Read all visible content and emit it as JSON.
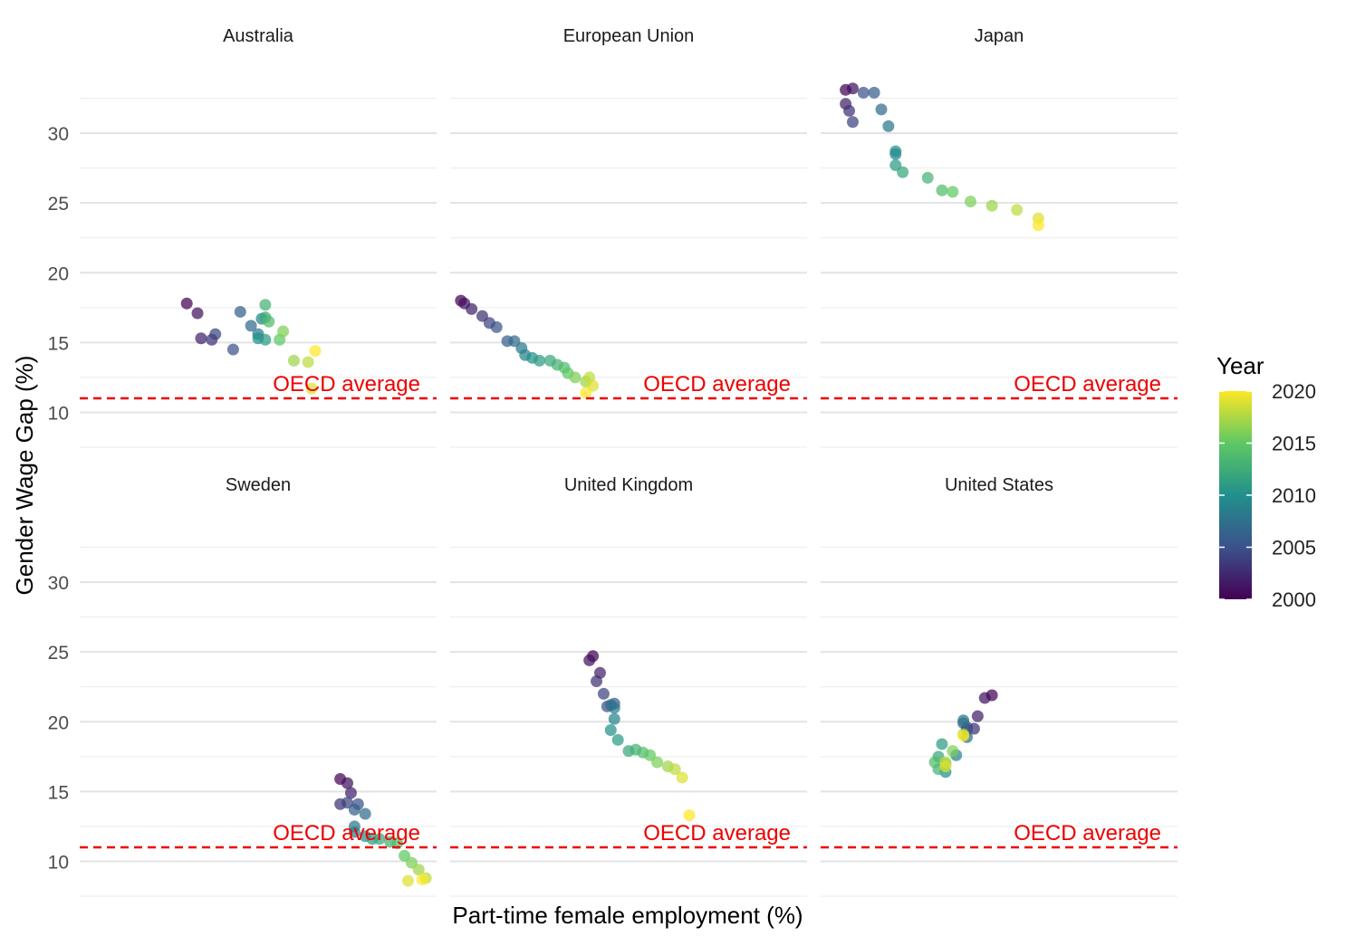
{
  "chart_data": {
    "type": "scatter",
    "xlabel": "Part-time female employment (%)",
    "ylabel": "Gender Wage Gap (%)",
    "ylim": [
      7.5,
      35
    ],
    "yticks": [
      10,
      15,
      20,
      25,
      30
    ],
    "grid": true,
    "reference_line": {
      "value": 11,
      "label": "OECD average",
      "color": "#ee0000",
      "style": "dashed"
    },
    "legend": {
      "title": "Year",
      "position": "right",
      "type": "colorbar",
      "range": [
        2000,
        2020
      ],
      "ticks": [
        2000,
        2005,
        2010,
        2015,
        2020
      ],
      "palette": [
        "#440154",
        "#3b528b",
        "#21908c",
        "#5dc863",
        "#fde725"
      ]
    },
    "facets": [
      {
        "name": "Australia",
        "points": [
          [
            0.3,
            17.8,
            2000
          ],
          [
            0.33,
            17.1,
            2001
          ],
          [
            0.34,
            15.3,
            2002
          ],
          [
            0.37,
            15.2,
            2003
          ],
          [
            0.38,
            15.6,
            2004
          ],
          [
            0.43,
            14.5,
            2005
          ],
          [
            0.45,
            17.2,
            2006
          ],
          [
            0.48,
            16.2,
            2007
          ],
          [
            0.5,
            15.6,
            2008
          ],
          [
            0.51,
            16.7,
            2009
          ],
          [
            0.5,
            15.3,
            2010
          ],
          [
            0.52,
            15.2,
            2011
          ],
          [
            0.52,
            16.8,
            2012
          ],
          [
            0.52,
            17.7,
            2013
          ],
          [
            0.53,
            16.5,
            2014
          ],
          [
            0.56,
            15.2,
            2015
          ],
          [
            0.57,
            15.8,
            2016
          ],
          [
            0.6,
            13.7,
            2017
          ],
          [
            0.64,
            13.6,
            2018
          ],
          [
            0.65,
            11.7,
            2019
          ],
          [
            0.66,
            14.4,
            2020
          ]
        ]
      },
      {
        "name": "European Union",
        "points": [
          [
            0.03,
            18.0,
            2000
          ],
          [
            0.04,
            17.8,
            2001
          ],
          [
            0.06,
            17.4,
            2002
          ],
          [
            0.09,
            16.9,
            2003
          ],
          [
            0.11,
            16.4,
            2004
          ],
          [
            0.13,
            16.1,
            2005
          ],
          [
            0.16,
            15.1,
            2006
          ],
          [
            0.18,
            15.1,
            2007
          ],
          [
            0.2,
            14.6,
            2008
          ],
          [
            0.21,
            14.1,
            2009
          ],
          [
            0.23,
            13.9,
            2010
          ],
          [
            0.25,
            13.7,
            2011
          ],
          [
            0.28,
            13.7,
            2012
          ],
          [
            0.3,
            13.4,
            2013
          ],
          [
            0.32,
            13.2,
            2014
          ],
          [
            0.33,
            12.8,
            2015
          ],
          [
            0.35,
            12.5,
            2016
          ],
          [
            0.38,
            12.2,
            2017
          ],
          [
            0.39,
            12.5,
            2018
          ],
          [
            0.4,
            11.9,
            2019
          ],
          [
            0.38,
            11.4,
            2020
          ]
        ]
      },
      {
        "name": "Japan",
        "points": [
          [
            0.07,
            33.1,
            2000
          ],
          [
            0.09,
            33.2,
            2001
          ],
          [
            0.07,
            32.1,
            2002
          ],
          [
            0.08,
            31.6,
            2003
          ],
          [
            0.09,
            30.8,
            2004
          ],
          [
            0.12,
            32.9,
            2005
          ],
          [
            0.15,
            32.9,
            2006
          ],
          [
            0.17,
            31.7,
            2007
          ],
          [
            0.19,
            30.5,
            2008
          ],
          [
            0.21,
            28.5,
            2009
          ],
          [
            0.21,
            28.7,
            2010
          ],
          [
            0.21,
            27.7,
            2011
          ],
          [
            0.23,
            27.2,
            2012
          ],
          [
            0.3,
            26.8,
            2013
          ],
          [
            0.34,
            25.9,
            2014
          ],
          [
            0.37,
            25.8,
            2015
          ],
          [
            0.42,
            25.1,
            2016
          ],
          [
            0.48,
            24.8,
            2017
          ],
          [
            0.55,
            24.5,
            2018
          ],
          [
            0.61,
            23.9,
            2019
          ],
          [
            0.61,
            23.4,
            2020
          ]
        ]
      },
      {
        "name": "Sweden",
        "points": [
          [
            0.73,
            15.9,
            2000
          ],
          [
            0.75,
            15.6,
            2001
          ],
          [
            0.76,
            14.9,
            2002
          ],
          [
            0.73,
            14.1,
            2003
          ],
          [
            0.75,
            14.2,
            2004
          ],
          [
            0.78,
            14.1,
            2005
          ],
          [
            0.77,
            13.7,
            2006
          ],
          [
            0.8,
            13.4,
            2007
          ],
          [
            0.77,
            12.5,
            2008
          ],
          [
            0.77,
            12.1,
            2009
          ],
          [
            0.8,
            11.8,
            2010
          ],
          [
            0.82,
            11.6,
            2011
          ],
          [
            0.84,
            11.6,
            2012
          ],
          [
            0.87,
            11.4,
            2013
          ],
          [
            0.89,
            11.3,
            2014
          ],
          [
            0.91,
            10.4,
            2015
          ],
          [
            0.93,
            9.9,
            2016
          ],
          [
            0.95,
            9.4,
            2017
          ],
          [
            0.97,
            8.8,
            2018
          ],
          [
            0.92,
            8.6,
            2019
          ],
          [
            0.96,
            8.7,
            2020
          ]
        ]
      },
      {
        "name": "United Kingdom",
        "points": [
          [
            0.4,
            24.7,
            2000
          ],
          [
            0.39,
            24.4,
            2001
          ],
          [
            0.42,
            23.5,
            2002
          ],
          [
            0.41,
            22.9,
            2003
          ],
          [
            0.43,
            22.0,
            2004
          ],
          [
            0.44,
            21.1,
            2005
          ],
          [
            0.46,
            21.3,
            2006
          ],
          [
            0.45,
            21.2,
            2007
          ],
          [
            0.46,
            21.0,
            2008
          ],
          [
            0.46,
            20.2,
            2009
          ],
          [
            0.45,
            19.4,
            2010
          ],
          [
            0.47,
            18.7,
            2011
          ],
          [
            0.5,
            17.9,
            2012
          ],
          [
            0.52,
            18.0,
            2013
          ],
          [
            0.54,
            17.8,
            2014
          ],
          [
            0.56,
            17.6,
            2015
          ],
          [
            0.58,
            17.1,
            2016
          ],
          [
            0.61,
            16.8,
            2017
          ],
          [
            0.63,
            16.6,
            2018
          ],
          [
            0.65,
            16.0,
            2019
          ],
          [
            0.67,
            13.3,
            2020
          ]
        ]
      },
      {
        "name": "United States",
        "points": [
          [
            0.48,
            21.9,
            2000
          ],
          [
            0.46,
            21.7,
            2001
          ],
          [
            0.44,
            20.4,
            2002
          ],
          [
            0.43,
            19.5,
            2003
          ],
          [
            0.41,
            19.6,
            2004
          ],
          [
            0.41,
            19.4,
            2005
          ],
          [
            0.4,
            19.9,
            2006
          ],
          [
            0.41,
            18.9,
            2007
          ],
          [
            0.4,
            20.1,
            2008
          ],
          [
            0.38,
            17.6,
            2009
          ],
          [
            0.35,
            16.4,
            2010
          ],
          [
            0.34,
            18.4,
            2011
          ],
          [
            0.33,
            17.5,
            2012
          ],
          [
            0.33,
            16.6,
            2013
          ],
          [
            0.32,
            17.1,
            2014
          ],
          [
            0.35,
            17.0,
            2015
          ],
          [
            0.37,
            17.9,
            2016
          ],
          [
            0.4,
            19.1,
            2017
          ],
          [
            0.35,
            17.1,
            2018
          ],
          [
            0.35,
            16.8,
            2019
          ],
          [
            0.4,
            19.0,
            2020
          ]
        ]
      }
    ]
  }
}
